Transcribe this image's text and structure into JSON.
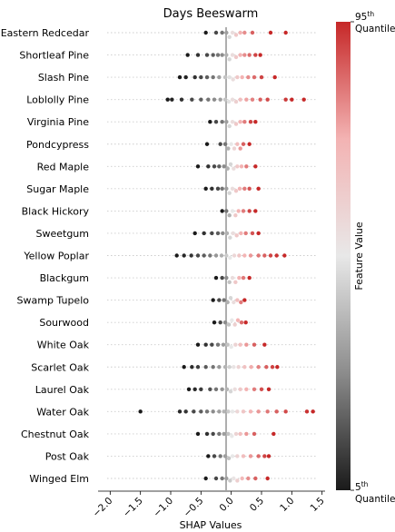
{
  "chart_data": {
    "type": "scatter",
    "subtype": "beeswarm",
    "title": "Days Beeswarm",
    "xlabel": "SHAP Values",
    "xlim": [
      -2.2,
      1.55
    ],
    "xticks": [
      "−2.0",
      "−1.5",
      "−1.0",
      "−0.5",
      "0.0",
      "0.5",
      "1.0",
      "1.5"
    ],
    "xtick_values": [
      -2.0,
      -1.5,
      -1.0,
      -0.5,
      0.0,
      0.5,
      1.0,
      1.5
    ],
    "grid": "dotted horizontal per row",
    "colorbar": {
      "label": "Feature Value",
      "top_label": {
        "base": "95",
        "sup": "th",
        "word": "Quantile"
      },
      "bottom_label": {
        "base": "5",
        "sup": "th",
        "word": "Quantile"
      },
      "colors": [
        "#1a1a1a",
        "#8c8c8c",
        "#e8e8e8",
        "#f3b3b3",
        "#c62828"
      ]
    },
    "categories": [
      "Eastern Redcedar",
      "Shortleaf Pine",
      "Slash Pine",
      "Loblolly Pine",
      "Virginia Pine",
      "Pondcypress",
      "Red Maple",
      "Sugar Maple",
      "Black Hickory",
      "Sweetgum",
      "Yellow Poplar",
      "Blackgum",
      "Swamp Tupelo",
      "Sourwood",
      "White Oak",
      "Scarlet Oak",
      "Laurel Oak",
      "Water Oak",
      "Chestnut Oak",
      "Post Oak",
      "Winged Elm"
    ],
    "series": [
      {
        "category": "Eastern Redcedar",
        "points": [
          [
            -0.42,
            0.0
          ],
          [
            -0.25,
            0.1
          ],
          [
            -0.15,
            0.2
          ],
          [
            -0.08,
            0.3
          ],
          [
            -0.03,
            0.45
          ],
          [
            0.02,
            0.55
          ],
          [
            0.08,
            0.65
          ],
          [
            0.15,
            0.75
          ],
          [
            0.22,
            0.82
          ],
          [
            0.35,
            0.9
          ],
          [
            0.65,
            1.0
          ],
          [
            0.9,
            1.0
          ]
        ]
      },
      {
        "category": "Shortleaf Pine",
        "points": [
          [
            -0.72,
            0.0
          ],
          [
            -0.55,
            0.05
          ],
          [
            -0.4,
            0.1
          ],
          [
            -0.3,
            0.15
          ],
          [
            -0.22,
            0.2
          ],
          [
            -0.15,
            0.25
          ],
          [
            -0.08,
            0.35
          ],
          [
            -0.03,
            0.45
          ],
          [
            0.02,
            0.55
          ],
          [
            0.08,
            0.65
          ],
          [
            0.15,
            0.75
          ],
          [
            0.22,
            0.82
          ],
          [
            0.3,
            0.88
          ],
          [
            0.4,
            0.95
          ],
          [
            0.48,
            1.0
          ]
        ]
      },
      {
        "category": "Slash Pine",
        "points": [
          [
            -0.85,
            0.0
          ],
          [
            -0.75,
            0.02
          ],
          [
            -0.6,
            0.05
          ],
          [
            -0.5,
            0.1
          ],
          [
            -0.4,
            0.15
          ],
          [
            -0.3,
            0.2
          ],
          [
            -0.2,
            0.3
          ],
          [
            -0.1,
            0.4
          ],
          [
            -0.03,
            0.48
          ],
          [
            0.03,
            0.55
          ],
          [
            0.1,
            0.65
          ],
          [
            0.18,
            0.75
          ],
          [
            0.28,
            0.82
          ],
          [
            0.38,
            0.88
          ],
          [
            0.5,
            0.95
          ],
          [
            0.72,
            1.0
          ]
        ]
      },
      {
        "category": "Loblolly Pine",
        "points": [
          [
            -1.05,
            0.0
          ],
          [
            -0.98,
            0.02
          ],
          [
            -0.82,
            0.05
          ],
          [
            -0.65,
            0.1
          ],
          [
            -0.5,
            0.15
          ],
          [
            -0.38,
            0.2
          ],
          [
            -0.28,
            0.25
          ],
          [
            -0.18,
            0.3
          ],
          [
            -0.1,
            0.4
          ],
          [
            -0.04,
            0.48
          ],
          [
            0.02,
            0.55
          ],
          [
            0.08,
            0.62
          ],
          [
            0.15,
            0.7
          ],
          [
            0.25,
            0.78
          ],
          [
            0.35,
            0.84
          ],
          [
            0.48,
            0.9
          ],
          [
            0.6,
            0.94
          ],
          [
            0.9,
            0.97
          ],
          [
            1.0,
            1.0
          ],
          [
            1.2,
            1.0
          ]
        ]
      },
      {
        "category": "Virginia Pine",
        "points": [
          [
            -0.35,
            0.0
          ],
          [
            -0.25,
            0.1
          ],
          [
            -0.15,
            0.2
          ],
          [
            -0.08,
            0.3
          ],
          [
            -0.03,
            0.45
          ],
          [
            0.02,
            0.55
          ],
          [
            0.08,
            0.65
          ],
          [
            0.15,
            0.75
          ],
          [
            0.22,
            0.85
          ],
          [
            0.32,
            0.95
          ],
          [
            0.4,
            1.0
          ]
        ]
      },
      {
        "category": "Pondcypress",
        "points": [
          [
            -0.4,
            0.0
          ],
          [
            -0.18,
            0.1
          ],
          [
            -0.1,
            0.2
          ],
          [
            -0.05,
            0.35
          ],
          [
            0.0,
            0.5
          ],
          [
            0.05,
            0.6
          ],
          [
            0.1,
            0.7
          ],
          [
            0.15,
            0.8
          ],
          [
            0.2,
            0.9
          ],
          [
            0.3,
            1.0
          ]
        ]
      },
      {
        "category": "Red Maple",
        "points": [
          [
            -0.55,
            0.0
          ],
          [
            -0.38,
            0.05
          ],
          [
            -0.28,
            0.1
          ],
          [
            -0.2,
            0.15
          ],
          [
            -0.12,
            0.25
          ],
          [
            -0.06,
            0.35
          ],
          [
            -0.01,
            0.45
          ],
          [
            0.04,
            0.55
          ],
          [
            0.1,
            0.65
          ],
          [
            0.17,
            0.75
          ],
          [
            0.25,
            0.85
          ],
          [
            0.4,
            1.0
          ]
        ]
      },
      {
        "category": "Sugar Maple",
        "points": [
          [
            -0.42,
            0.0
          ],
          [
            -0.32,
            0.05
          ],
          [
            -0.22,
            0.1
          ],
          [
            -0.15,
            0.2
          ],
          [
            -0.08,
            0.3
          ],
          [
            -0.03,
            0.45
          ],
          [
            0.02,
            0.55
          ],
          [
            0.08,
            0.65
          ],
          [
            0.14,
            0.75
          ],
          [
            0.22,
            0.85
          ],
          [
            0.3,
            0.92
          ],
          [
            0.45,
            1.0
          ]
        ]
      },
      {
        "category": "Black Hickory",
        "points": [
          [
            -0.15,
            0.0
          ],
          [
            -0.08,
            0.2
          ],
          [
            -0.03,
            0.35
          ],
          [
            0.02,
            0.5
          ],
          [
            0.07,
            0.65
          ],
          [
            0.12,
            0.75
          ],
          [
            0.2,
            0.85
          ],
          [
            0.3,
            0.95
          ],
          [
            0.4,
            1.0
          ]
        ]
      },
      {
        "category": "Sweetgum",
        "points": [
          [
            -0.6,
            0.0
          ],
          [
            -0.45,
            0.05
          ],
          [
            -0.32,
            0.1
          ],
          [
            -0.22,
            0.15
          ],
          [
            -0.14,
            0.25
          ],
          [
            -0.07,
            0.35
          ],
          [
            -0.02,
            0.45
          ],
          [
            0.03,
            0.55
          ],
          [
            0.09,
            0.65
          ],
          [
            0.16,
            0.75
          ],
          [
            0.24,
            0.85
          ],
          [
            0.35,
            0.92
          ],
          [
            0.45,
            1.0
          ]
        ]
      },
      {
        "category": "Yellow Poplar",
        "points": [
          [
            -0.9,
            0.0
          ],
          [
            -0.78,
            0.03
          ],
          [
            -0.66,
            0.06
          ],
          [
            -0.55,
            0.1
          ],
          [
            -0.45,
            0.15
          ],
          [
            -0.35,
            0.2
          ],
          [
            -0.25,
            0.28
          ],
          [
            -0.16,
            0.35
          ],
          [
            -0.08,
            0.42
          ],
          [
            -0.02,
            0.5
          ],
          [
            0.05,
            0.58
          ],
          [
            0.13,
            0.66
          ],
          [
            0.22,
            0.74
          ],
          [
            0.32,
            0.8
          ],
          [
            0.45,
            0.86
          ],
          [
            0.55,
            0.9
          ],
          [
            0.65,
            0.95
          ],
          [
            0.75,
            0.98
          ],
          [
            0.88,
            1.0
          ]
        ]
      },
      {
        "category": "Blackgum",
        "points": [
          [
            -0.25,
            0.0
          ],
          [
            -0.15,
            0.1
          ],
          [
            -0.08,
            0.25
          ],
          [
            -0.03,
            0.4
          ],
          [
            0.02,
            0.55
          ],
          [
            0.07,
            0.65
          ],
          [
            0.13,
            0.75
          ],
          [
            0.2,
            0.85
          ],
          [
            0.3,
            1.0
          ]
        ]
      },
      {
        "category": "Swamp Tupelo",
        "points": [
          [
            -0.3,
            0.0
          ],
          [
            -0.2,
            0.1
          ],
          [
            -0.12,
            0.2
          ],
          [
            -0.06,
            0.35
          ],
          [
            -0.01,
            0.45
          ],
          [
            0.04,
            0.55
          ],
          [
            0.1,
            0.7
          ],
          [
            0.16,
            0.85
          ],
          [
            0.22,
            1.0
          ]
        ]
      },
      {
        "category": "Sourwood",
        "points": [
          [
            -0.28,
            0.0
          ],
          [
            -0.18,
            0.1
          ],
          [
            -0.1,
            0.25
          ],
          [
            -0.04,
            0.4
          ],
          [
            0.01,
            0.5
          ],
          [
            0.06,
            0.62
          ],
          [
            0.11,
            0.75
          ],
          [
            0.17,
            0.88
          ],
          [
            0.24,
            1.0
          ]
        ]
      },
      {
        "category": "White Oak",
        "points": [
          [
            -0.55,
            0.0
          ],
          [
            -0.42,
            0.05
          ],
          [
            -0.32,
            0.1
          ],
          [
            -0.22,
            0.2
          ],
          [
            -0.13,
            0.3
          ],
          [
            -0.06,
            0.4
          ],
          [
            0.0,
            0.5
          ],
          [
            0.07,
            0.6
          ],
          [
            0.15,
            0.7
          ],
          [
            0.25,
            0.8
          ],
          [
            0.38,
            0.9
          ],
          [
            0.55,
            1.0
          ]
        ]
      },
      {
        "category": "Scarlet Oak",
        "points": [
          [
            -0.78,
            0.0
          ],
          [
            -0.65,
            0.04
          ],
          [
            -0.55,
            0.08
          ],
          [
            -0.42,
            0.14
          ],
          [
            -0.3,
            0.2
          ],
          [
            -0.2,
            0.28
          ],
          [
            -0.1,
            0.36
          ],
          [
            -0.03,
            0.44
          ],
          [
            0.04,
            0.52
          ],
          [
            0.12,
            0.6
          ],
          [
            0.22,
            0.68
          ],
          [
            0.33,
            0.76
          ],
          [
            0.45,
            0.84
          ],
          [
            0.58,
            0.9
          ],
          [
            0.68,
            0.95
          ],
          [
            0.76,
            1.0
          ]
        ]
      },
      {
        "category": "Laurel Oak",
        "points": [
          [
            -0.7,
            0.0
          ],
          [
            -0.6,
            0.03
          ],
          [
            -0.5,
            0.07
          ],
          [
            -0.35,
            0.12
          ],
          [
            -0.25,
            0.2
          ],
          [
            -0.15,
            0.28
          ],
          [
            -0.07,
            0.36
          ],
          [
            -0.01,
            0.45
          ],
          [
            0.06,
            0.55
          ],
          [
            0.15,
            0.65
          ],
          [
            0.25,
            0.75
          ],
          [
            0.38,
            0.85
          ],
          [
            0.5,
            0.93
          ],
          [
            0.62,
            1.0
          ]
        ]
      },
      {
        "category": "Water Oak",
        "points": [
          [
            -1.5,
            0.0
          ],
          [
            -0.85,
            0.03
          ],
          [
            -0.75,
            0.06
          ],
          [
            -0.62,
            0.1
          ],
          [
            -0.5,
            0.15
          ],
          [
            -0.4,
            0.2
          ],
          [
            -0.3,
            0.25
          ],
          [
            -0.2,
            0.3
          ],
          [
            -0.12,
            0.36
          ],
          [
            -0.05,
            0.42
          ],
          [
            0.02,
            0.5
          ],
          [
            0.1,
            0.58
          ],
          [
            0.2,
            0.66
          ],
          [
            0.32,
            0.74
          ],
          [
            0.45,
            0.8
          ],
          [
            0.6,
            0.86
          ],
          [
            0.75,
            0.9
          ],
          [
            0.9,
            0.94
          ],
          [
            1.25,
            0.98
          ],
          [
            1.35,
            1.0
          ]
        ]
      },
      {
        "category": "Chestnut Oak",
        "points": [
          [
            -0.55,
            0.0
          ],
          [
            -0.4,
            0.05
          ],
          [
            -0.3,
            0.1
          ],
          [
            -0.2,
            0.2
          ],
          [
            -0.12,
            0.3
          ],
          [
            -0.05,
            0.4
          ],
          [
            0.01,
            0.5
          ],
          [
            0.08,
            0.6
          ],
          [
            0.15,
            0.7
          ],
          [
            0.25,
            0.8
          ],
          [
            0.38,
            0.9
          ],
          [
            0.7,
            1.0
          ]
        ]
      },
      {
        "category": "Post Oak",
        "points": [
          [
            -0.38,
            0.0
          ],
          [
            -0.28,
            0.1
          ],
          [
            -0.18,
            0.2
          ],
          [
            -0.1,
            0.3
          ],
          [
            -0.04,
            0.4
          ],
          [
            0.02,
            0.5
          ],
          [
            0.1,
            0.6
          ],
          [
            0.2,
            0.7
          ],
          [
            0.32,
            0.8
          ],
          [
            0.45,
            0.88
          ],
          [
            0.55,
            0.95
          ],
          [
            0.62,
            1.0
          ]
        ]
      },
      {
        "category": "Winged Elm",
        "points": [
          [
            -0.42,
            0.0
          ],
          [
            -0.25,
            0.1
          ],
          [
            -0.15,
            0.2
          ],
          [
            -0.08,
            0.3
          ],
          [
            -0.02,
            0.42
          ],
          [
            0.04,
            0.52
          ],
          [
            0.1,
            0.62
          ],
          [
            0.18,
            0.72
          ],
          [
            0.28,
            0.82
          ],
          [
            0.4,
            0.9
          ],
          [
            0.6,
            1.0
          ]
        ]
      }
    ]
  }
}
